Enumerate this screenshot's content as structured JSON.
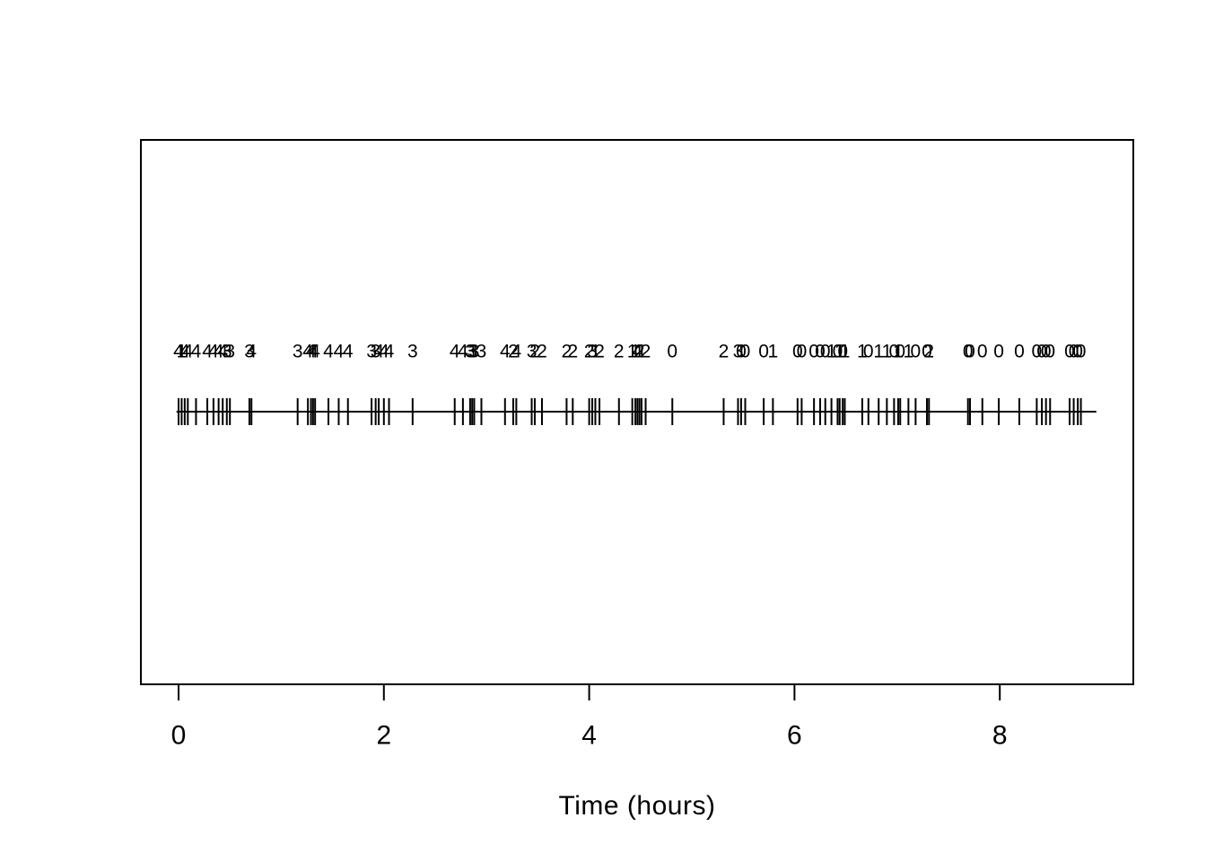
{
  "figure": {
    "background": "#ffffff",
    "foreground": "#000000"
  },
  "chart_data": {
    "type": "scatter",
    "subtype": "event-strip-plot",
    "title": "",
    "xlabel": "Time (hours)",
    "ylabel": "",
    "xlim": [
      0,
      9
    ],
    "x_ticks": [
      0,
      2,
      4,
      6,
      8
    ],
    "x_tick_labels": [
      "0",
      "2",
      "4",
      "6",
      "8"
    ],
    "grid": false,
    "legend": "none",
    "line_span": [
      -0.02,
      8.94
    ],
    "marker": "vertical-bar",
    "events": [
      {
        "t": 0.0,
        "n": 4
      },
      {
        "t": 0.03,
        "n": 1
      },
      {
        "t": 0.06,
        "n": 4
      },
      {
        "t": 0.09,
        "n": 4
      },
      {
        "t": 0.17,
        "n": 4
      },
      {
        "t": 0.28,
        "n": 4
      },
      {
        "t": 0.34,
        "n": 4
      },
      {
        "t": 0.39,
        "n": 4
      },
      {
        "t": 0.43,
        "n": 4
      },
      {
        "t": 0.47,
        "n": 3
      },
      {
        "t": 0.5,
        "n": 3
      },
      {
        "t": 0.69,
        "n": 3
      },
      {
        "t": 0.71,
        "n": 4
      },
      {
        "t": 1.16,
        "n": 3
      },
      {
        "t": 1.26,
        "n": 4
      },
      {
        "t": 1.29,
        "n": 4
      },
      {
        "t": 1.31,
        "n": 4
      },
      {
        "t": 1.33,
        "n": 4
      },
      {
        "t": 1.46,
        "n": 4
      },
      {
        "t": 1.56,
        "n": 4
      },
      {
        "t": 1.65,
        "n": 4
      },
      {
        "t": 1.88,
        "n": 3
      },
      {
        "t": 1.92,
        "n": 3
      },
      {
        "t": 1.95,
        "n": 4
      },
      {
        "t": 2.0,
        "n": 4
      },
      {
        "t": 2.05,
        "n": 4
      },
      {
        "t": 2.28,
        "n": 3
      },
      {
        "t": 2.69,
        "n": 4
      },
      {
        "t": 2.77,
        "n": 4
      },
      {
        "t": 2.84,
        "n": 3
      },
      {
        "t": 2.86,
        "n": 3
      },
      {
        "t": 2.88,
        "n": 3
      },
      {
        "t": 2.95,
        "n": 3
      },
      {
        "t": 3.18,
        "n": 4
      },
      {
        "t": 3.26,
        "n": 2
      },
      {
        "t": 3.29,
        "n": 4
      },
      {
        "t": 3.44,
        "n": 3
      },
      {
        "t": 3.47,
        "n": 2
      },
      {
        "t": 3.54,
        "n": 2
      },
      {
        "t": 3.78,
        "n": 2
      },
      {
        "t": 3.84,
        "n": 2
      },
      {
        "t": 4.0,
        "n": 2
      },
      {
        "t": 4.03,
        "n": 3
      },
      {
        "t": 4.06,
        "n": 1
      },
      {
        "t": 4.1,
        "n": 2
      },
      {
        "t": 4.29,
        "n": 2
      },
      {
        "t": 4.42,
        "n": 1
      },
      {
        "t": 4.45,
        "n": 1
      },
      {
        "t": 4.47,
        "n": 4
      },
      {
        "t": 4.49,
        "n": 2
      },
      {
        "t": 4.51,
        "n": 1
      },
      {
        "t": 4.55,
        "n": 2
      },
      {
        "t": 4.81,
        "n": 0
      },
      {
        "t": 5.31,
        "n": 2
      },
      {
        "t": 5.45,
        "n": 3
      },
      {
        "t": 5.48,
        "n": 0
      },
      {
        "t": 5.52,
        "n": 0
      },
      {
        "t": 5.7,
        "n": 0
      },
      {
        "t": 5.79,
        "n": 1
      },
      {
        "t": 6.03,
        "n": 0
      },
      {
        "t": 6.07,
        "n": 0
      },
      {
        "t": 6.19,
        "n": 0
      },
      {
        "t": 6.25,
        "n": 0
      },
      {
        "t": 6.3,
        "n": 0
      },
      {
        "t": 6.36,
        "n": 1
      },
      {
        "t": 6.42,
        "n": 0
      },
      {
        "t": 6.44,
        "n": 1
      },
      {
        "t": 6.47,
        "n": 0
      },
      {
        "t": 6.49,
        "n": 1
      },
      {
        "t": 6.66,
        "n": 1
      },
      {
        "t": 6.72,
        "n": 0
      },
      {
        "t": 6.82,
        "n": 1
      },
      {
        "t": 6.9,
        "n": 1
      },
      {
        "t": 6.97,
        "n": 0
      },
      {
        "t": 7.01,
        "n": 1
      },
      {
        "t": 7.03,
        "n": 0
      },
      {
        "t": 7.11,
        "n": 1
      },
      {
        "t": 7.18,
        "n": 0
      },
      {
        "t": 7.29,
        "n": 0
      },
      {
        "t": 7.31,
        "n": 2
      },
      {
        "t": 7.69,
        "n": 0
      },
      {
        "t": 7.71,
        "n": 0
      },
      {
        "t": 7.83,
        "n": 0
      },
      {
        "t": 7.99,
        "n": 0
      },
      {
        "t": 8.19,
        "n": 0
      },
      {
        "t": 8.36,
        "n": 0
      },
      {
        "t": 8.41,
        "n": 0
      },
      {
        "t": 8.45,
        "n": 0
      },
      {
        "t": 8.49,
        "n": 0
      },
      {
        "t": 8.68,
        "n": 0
      },
      {
        "t": 8.72,
        "n": 0
      },
      {
        "t": 8.76,
        "n": 0
      },
      {
        "t": 8.79,
        "n": 0
      }
    ]
  }
}
